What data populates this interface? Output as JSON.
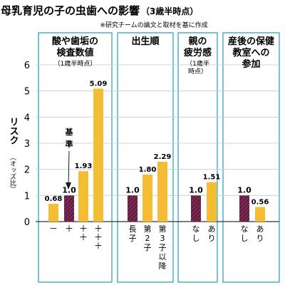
{
  "header": {
    "title_main": "母乳育児の子の虫歯への影響",
    "title_sub": "（3歳半時点）",
    "note": "※研究チームの論文と取材を基に作成"
  },
  "axis": {
    "label_main": "リスク",
    "label_sub": "（オッズ比）",
    "ticks": [
      "0",
      "1",
      "2",
      "3",
      "4",
      "5",
      "6"
    ]
  },
  "reference_label": "基準",
  "colors": {
    "reference_bar": "#7a2a52",
    "bar": "#f5bd33",
    "panel_border": "#52b8c8",
    "hatch": "#3a0f24"
  },
  "chart_data": {
    "type": "bar",
    "ylim": [
      0,
      6
    ],
    "ylabel": "リスク（オッズ比）",
    "groups": [
      {
        "title_lines": [
          "酸や歯垢の",
          "検査数値"
        ],
        "subtitle": "（1歳半時点）",
        "categories": [
          "－",
          "＋",
          "＋＋",
          "＋＋＋"
        ],
        "values": [
          0.68,
          1.0,
          1.93,
          5.09
        ],
        "labels": [
          "0.68",
          "1.0",
          "1.93",
          "5.09"
        ],
        "reference_index": 1
      },
      {
        "title_lines": [
          "出生順"
        ],
        "subtitle": "",
        "categories": [
          "長子",
          "第2子",
          "第3子以降"
        ],
        "values": [
          1.0,
          1.8,
          2.29
        ],
        "labels": [
          "1.0",
          "1.80",
          "2.29"
        ],
        "reference_index": 0
      },
      {
        "title_lines": [
          "親の",
          "疲労感"
        ],
        "subtitle": "（1歳半時点）",
        "categories": [
          "なし",
          "あり"
        ],
        "values": [
          1.0,
          1.51
        ],
        "labels": [
          "1.0",
          "1.51"
        ],
        "reference_index": 0
      },
      {
        "title_lines": [
          "産後の保健",
          "教室への",
          "参加"
        ],
        "subtitle": "",
        "categories": [
          "なし",
          "あり"
        ],
        "values": [
          1.0,
          0.56
        ],
        "labels": [
          "1.0",
          "0.56"
        ],
        "reference_index": 0
      }
    ]
  }
}
